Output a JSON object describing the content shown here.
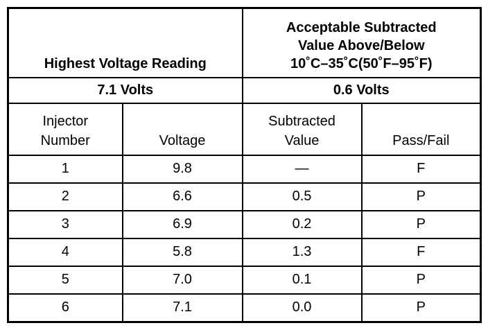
{
  "table": {
    "header": {
      "left": "Highest Voltage Reading",
      "right": [
        "Acceptable Subtracted",
        "Value Above/Below",
        "10˚C–35˚C(50˚F–95˚F)"
      ]
    },
    "summary": {
      "highest": "7.1 Volts",
      "acceptable": "0.6 Volts"
    },
    "columns": [
      [
        "Injector",
        "Number"
      ],
      [
        "Voltage"
      ],
      [
        "Subtracted",
        "Value"
      ],
      [
        "Pass/Fail"
      ]
    ],
    "rows": [
      [
        "1",
        "9.8",
        "—",
        "F"
      ],
      [
        "2",
        "6.6",
        "0.5",
        "P"
      ],
      [
        "3",
        "6.9",
        "0.2",
        "P"
      ],
      [
        "4",
        "5.8",
        "1.3",
        "F"
      ],
      [
        "5",
        "7.0",
        "0.1",
        "P"
      ],
      [
        "6",
        "7.1",
        "0.0",
        "P"
      ]
    ]
  }
}
